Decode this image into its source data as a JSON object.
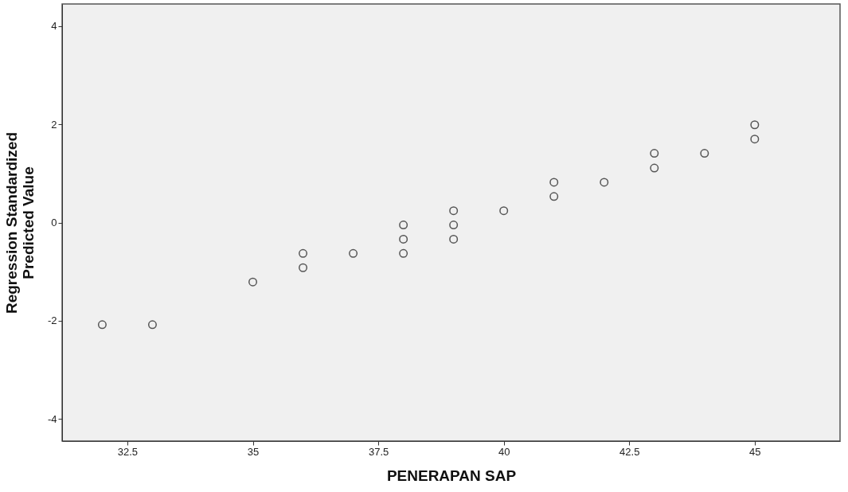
{
  "chart_data": {
    "type": "scatter",
    "xlabel": "PENERAPAN SAP",
    "ylabel": "Regression Standardized Predicted Value",
    "x": [
      32,
      33,
      35,
      36,
      36,
      37,
      38,
      38,
      38,
      39,
      39,
      39,
      40,
      41,
      41,
      42,
      43,
      43,
      44,
      45,
      45
    ],
    "values": [
      -2.08,
      -2.08,
      -1.21,
      -0.63,
      -0.92,
      -0.63,
      -0.05,
      -0.34,
      -0.63,
      0.24,
      -0.05,
      -0.34,
      0.24,
      0.82,
      0.53,
      0.82,
      1.41,
      1.11,
      1.41,
      1.99,
      1.7
    ],
    "color": "#555555",
    "marker": "circle",
    "xlim": [
      31.2,
      46.7
    ],
    "xticks": [
      32.5,
      35,
      37.5,
      40,
      42.5,
      45
    ],
    "ylim": [
      -4.45,
      4.45
    ],
    "yticks": [
      -4,
      -2,
      0,
      2,
      4
    ],
    "grid": false
  }
}
